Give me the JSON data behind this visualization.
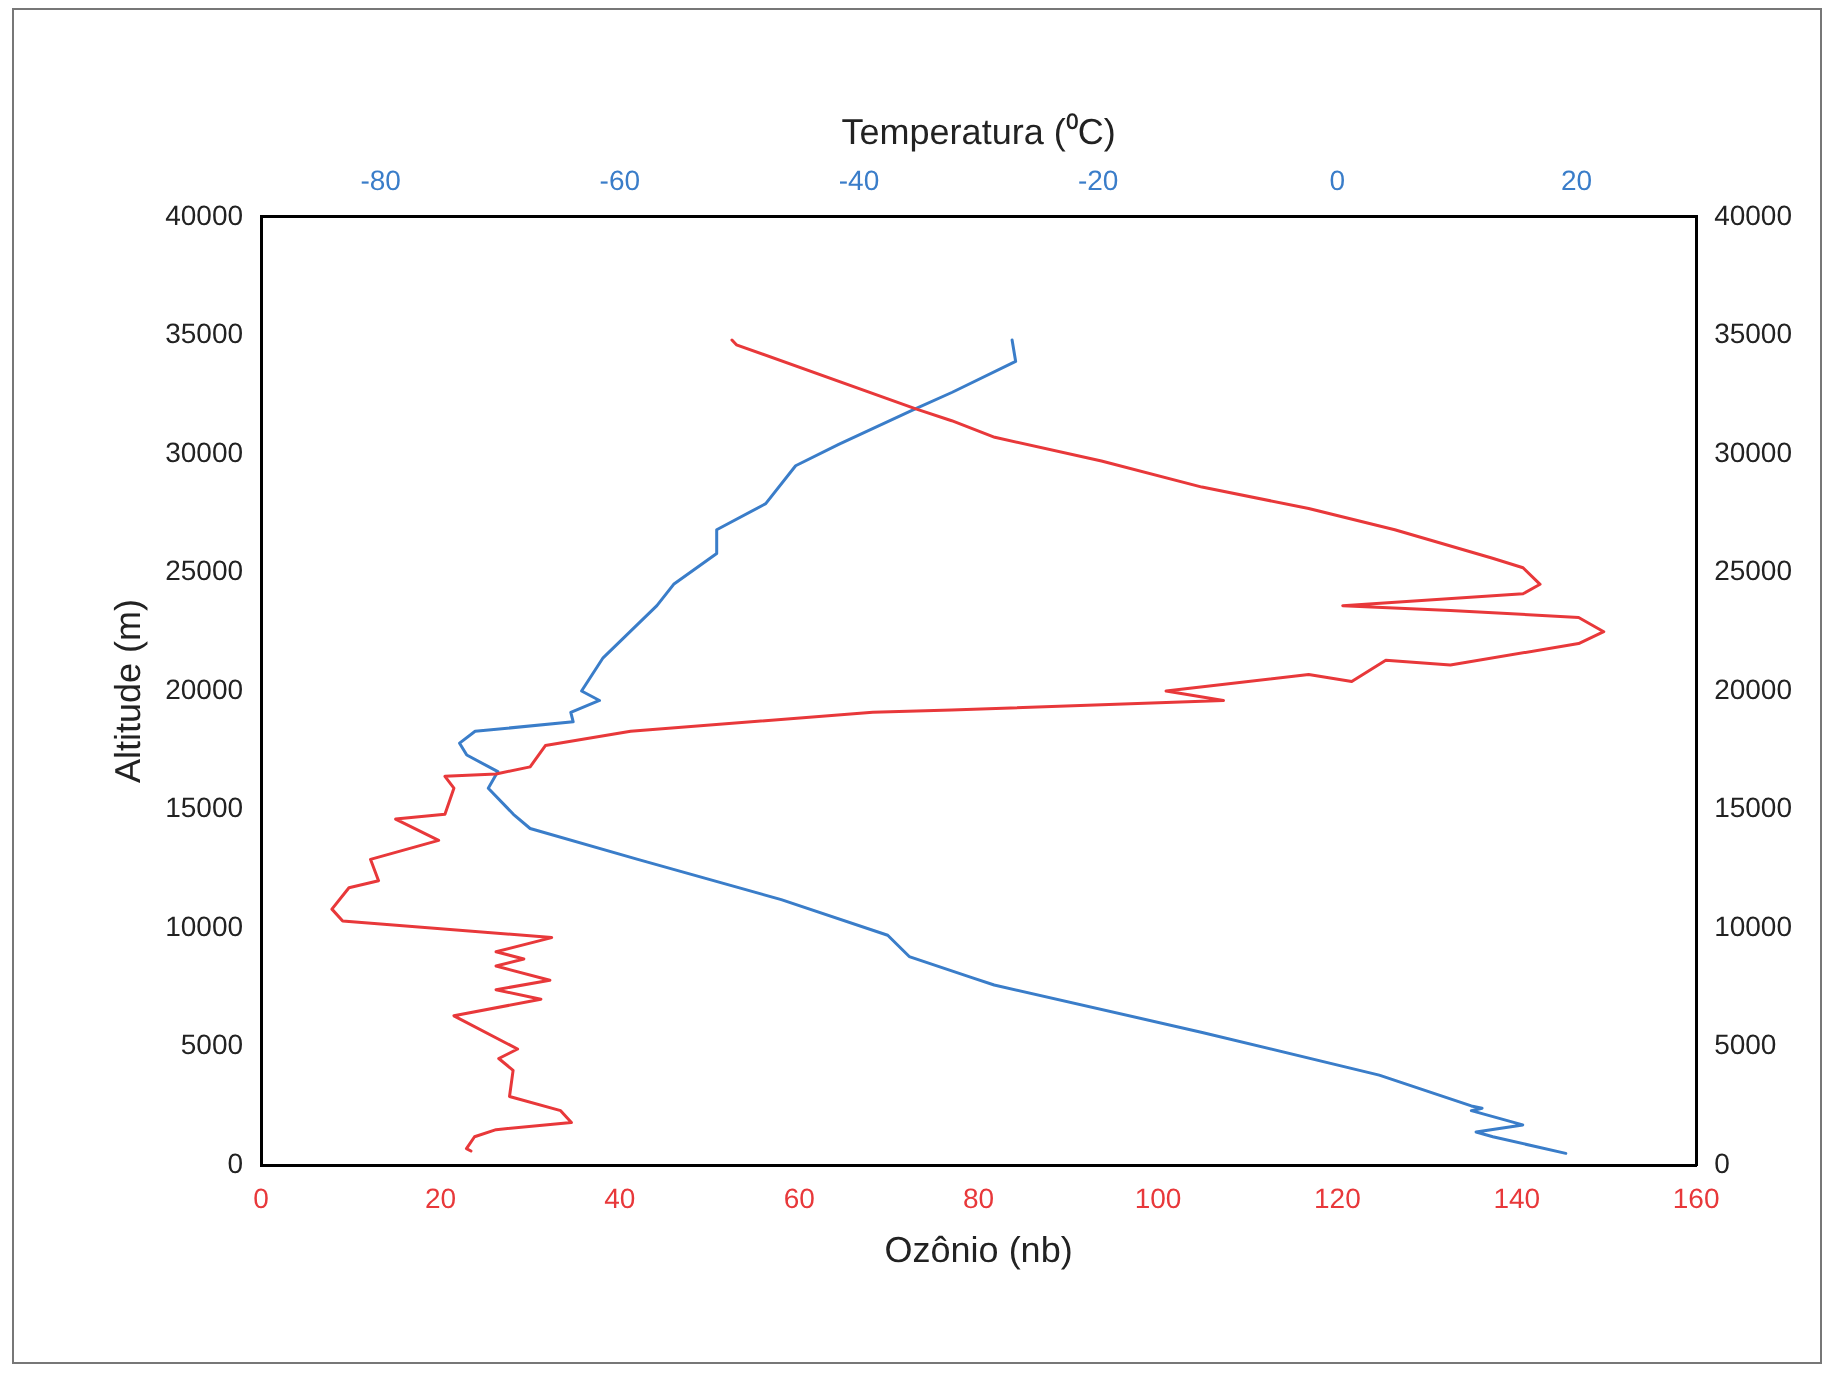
{
  "chart_data": {
    "type": "line",
    "xlabel": "Ozônio (nb)",
    "x2label": "Temperatura (⁰C)",
    "ylabel": "Altitude (m)",
    "xlim": [
      0,
      160
    ],
    "xticks": [
      0,
      20,
      40,
      60,
      80,
      100,
      120,
      140,
      160
    ],
    "x2lim": [
      -90,
      30
    ],
    "x2ticks": [
      -80,
      -60,
      -40,
      -20,
      0,
      20
    ],
    "ylim": [
      0,
      40000
    ],
    "yticks": [
      0,
      5000,
      10000,
      15000,
      20000,
      25000,
      30000,
      35000,
      40000
    ],
    "y2lim": [
      0,
      40000
    ],
    "y2ticks": [
      0,
      5000,
      10000,
      15000,
      20000,
      25000,
      30000,
      35000,
      40000
    ],
    "grid": false,
    "legend": false,
    "marker": "none",
    "line_style": "solid",
    "series": [
      {
        "color": "#e8383a",
        "x": [
          52.5,
          53,
          73,
          77,
          81.8,
          93.7,
          104.9,
          116.8,
          126.4,
          137.3,
          140.7,
          142.6,
          140.7,
          120.6,
          132.6,
          146.9,
          149.7,
          146.9,
          132.6,
          125.4,
          121.6,
          116.8,
          100.9,
          107.3,
          77,
          68.2,
          41.2,
          31.7,
          30,
          26.2,
          20.5,
          21.5,
          20.5,
          15,
          19.8,
          12.2,
          13.1,
          9.8,
          7.9,
          9.1,
          32.4,
          26.2,
          29.3,
          26.2,
          32.2,
          26.2,
          31.2,
          21.5,
          28.6,
          26.5,
          28.1,
          27.7,
          33.4,
          34.6,
          26.2,
          23.8,
          22.9,
          23.4
        ],
        "values": [
          34800,
          34600,
          31900,
          31400,
          30700,
          29700,
          28600,
          27700,
          26800,
          25600,
          25200,
          24500,
          24100,
          23600,
          23400,
          23100,
          22500,
          22000,
          21100,
          21300,
          20400,
          20700,
          20000,
          19600,
          19200,
          19100,
          18300,
          17700,
          16800,
          16500,
          16400,
          15900,
          14800,
          14600,
          13700,
          12900,
          12000,
          11700,
          10800,
          10300,
          9600,
          9000,
          8700,
          8400,
          7800,
          7400,
          7000,
          6300,
          4900,
          4500,
          4000,
          2900,
          2300,
          1800,
          1500,
          1200,
          700,
          600
        ]
      },
      {
        "color": "#3a7dc9",
        "axis": "x2",
        "x": [
          -27.2,
          -26.9,
          -32.2,
          -35.3,
          -41.7,
          -45.3,
          -47.8,
          -51.9,
          -51.9,
          -55.5,
          -56.9,
          -61.4,
          -63.2,
          -61.7,
          -64.1,
          -63.9,
          -72.1,
          -73.4,
          -72.8,
          -70.2,
          -71,
          -68.9,
          -67.5,
          -58.5,
          -46.5,
          -37.6,
          -35.8,
          -30.5,
          -28.7,
          -11.3,
          3.5,
          11.2,
          12.1,
          11.2,
          15.5,
          11.6,
          13,
          19.1
        ],
        "values": [
          34800,
          33900,
          32600,
          31900,
          30400,
          29500,
          27900,
          26800,
          25800,
          24500,
          23600,
          21400,
          20000,
          19600,
          19100,
          18700,
          18300,
          17800,
          17300,
          16600,
          15900,
          14800,
          14200,
          12900,
          11200,
          9700,
          8800,
          7900,
          7600,
          5600,
          3800,
          2500,
          2400,
          2300,
          1700,
          1400,
          1200,
          500
        ]
      }
    ]
  }
}
